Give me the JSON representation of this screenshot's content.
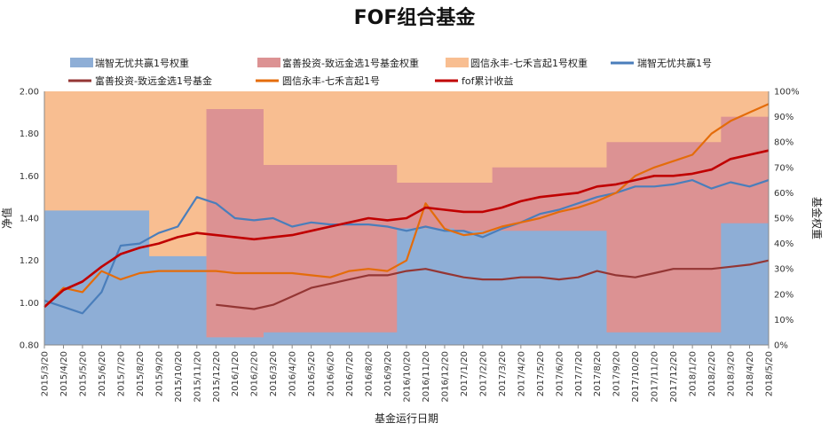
{
  "chart_data": {
    "type": "line",
    "title": "FOF组合基金",
    "xlabel": "基金运行日期",
    "ylabel": "净值",
    "y2label": "基金权重",
    "ylim": [
      0.8,
      2.0
    ],
    "y2lim": [
      0,
      1.0
    ],
    "yticks": [
      "0.80",
      "1.00",
      "1.20",
      "1.40",
      "1.60",
      "1.80",
      "2.00"
    ],
    "y2ticks": [
      "0%",
      "10%",
      "20%",
      "30%",
      "40%",
      "50%",
      "60%",
      "70%",
      "80%",
      "90%",
      "100%"
    ],
    "x": [
      "2015/3/20",
      "2015/4/20",
      "2015/5/20",
      "2015/6/20",
      "2015/7/20",
      "2015/8/20",
      "2015/9/20",
      "2015/10/20",
      "2015/11/20",
      "2015/12/20",
      "2016/1/20",
      "2016/2/20",
      "2016/3/20",
      "2016/4/20",
      "2016/5/20",
      "2016/6/20",
      "2016/7/20",
      "2016/8/20",
      "2016/9/20",
      "2016/10/20",
      "2016/11/20",
      "2016/12/20",
      "2017/1/20",
      "2017/2/20",
      "2017/3/20",
      "2017/4/20",
      "2017/5/20",
      "2017/6/20",
      "2017/7/20",
      "2017/8/20",
      "2017/9/20",
      "2017/10/20",
      "2017/11/20",
      "2017/12/20",
      "2018/1/20",
      "2018/2/20",
      "2018/3/20",
      "2018/4/20",
      "2018/5/20"
    ],
    "legend_position": "top",
    "weights": [
      {
        "name": "瑞智无忧共赢1号权重",
        "color": "#8eaed6",
        "values": [
          0.53,
          0.53,
          0.53,
          0.53,
          0.53,
          0.53,
          0.35,
          0.35,
          0.35,
          0.03,
          0.03,
          0.03,
          0.05,
          0.05,
          0.05,
          0.05,
          0.05,
          0.05,
          0.05,
          0.46,
          0.46,
          0.46,
          0.45,
          0.45,
          0.45,
          0.45,
          0.45,
          0.45,
          0.45,
          0.45,
          0.05,
          0.05,
          0.05,
          0.05,
          0.05,
          0.05,
          0.48,
          0.48,
          0.48
        ]
      },
      {
        "name": "富善投资-致远金选1号基金权重",
        "color": "#dc9293",
        "values": [
          0,
          0,
          0,
          0,
          0,
          0,
          0,
          0,
          0,
          0.93,
          0.93,
          0.93,
          0.71,
          0.71,
          0.71,
          0.71,
          0.71,
          0.71,
          0.71,
          0.64,
          0.64,
          0.64,
          0.64,
          0.64,
          0.7,
          0.7,
          0.7,
          0.7,
          0.7,
          0.7,
          0.8,
          0.8,
          0.8,
          0.8,
          0.8,
          0.8,
          0.9,
          0.9,
          0.9
        ]
      },
      {
        "name": "圆信永丰-七禾言起1号权重",
        "color": "#f8be91",
        "values": [
          1,
          1,
          1,
          1,
          1,
          1,
          1,
          1,
          1,
          1,
          1,
          1,
          1,
          1,
          1,
          1,
          1,
          1,
          1,
          1,
          1,
          1,
          1,
          1,
          1,
          1,
          1,
          1,
          1,
          1,
          1,
          1,
          1,
          1,
          1,
          1,
          1,
          1,
          1
        ]
      }
    ],
    "series": [
      {
        "name": "瑞智无忧共赢1号",
        "color": "#4a7ebb",
        "values": [
          1.01,
          0.98,
          0.95,
          1.05,
          1.27,
          1.28,
          1.33,
          1.36,
          1.5,
          1.47,
          1.4,
          1.39,
          1.4,
          1.36,
          1.38,
          1.37,
          1.37,
          1.37,
          1.36,
          1.34,
          1.36,
          1.34,
          1.34,
          1.31,
          1.35,
          1.38,
          1.42,
          1.44,
          1.47,
          1.5,
          1.52,
          1.55,
          1.55,
          1.56,
          1.58,
          1.54,
          1.57,
          1.55,
          1.58
        ]
      },
      {
        "name": "富善投资-致远金选1号基金",
        "color": "#943634",
        "values": [
          null,
          null,
          null,
          null,
          null,
          null,
          null,
          null,
          null,
          0.99,
          0.98,
          0.97,
          0.99,
          1.03,
          1.07,
          1.09,
          1.11,
          1.13,
          1.13,
          1.15,
          1.16,
          1.14,
          1.12,
          1.11,
          1.11,
          1.12,
          1.12,
          1.11,
          1.12,
          1.15,
          1.13,
          1.12,
          1.14,
          1.16,
          1.16,
          1.16,
          1.17,
          1.18,
          1.2
        ]
      },
      {
        "name": "圆信永丰-七禾言起1号",
        "color": "#e46c0a",
        "values": [
          0.98,
          1.07,
          1.05,
          1.15,
          1.11,
          1.14,
          1.15,
          1.15,
          1.15,
          1.15,
          1.14,
          1.14,
          1.14,
          1.14,
          1.13,
          1.12,
          1.15,
          1.16,
          1.15,
          1.2,
          1.47,
          1.35,
          1.32,
          1.33,
          1.36,
          1.38,
          1.4,
          1.43,
          1.45,
          1.48,
          1.52,
          1.6,
          1.64,
          1.67,
          1.7,
          1.8,
          1.86,
          1.9,
          1.94
        ]
      },
      {
        "name": "fof累计收益",
        "color": "#c00000",
        "values": [
          0.98,
          1.06,
          1.1,
          1.17,
          1.23,
          1.26,
          1.28,
          1.31,
          1.33,
          1.32,
          1.31,
          1.3,
          1.31,
          1.32,
          1.34,
          1.36,
          1.38,
          1.4,
          1.39,
          1.4,
          1.45,
          1.44,
          1.43,
          1.43,
          1.45,
          1.48,
          1.5,
          1.51,
          1.52,
          1.55,
          1.56,
          1.58,
          1.6,
          1.6,
          1.61,
          1.63,
          1.68,
          1.7,
          1.72
        ]
      }
    ]
  }
}
